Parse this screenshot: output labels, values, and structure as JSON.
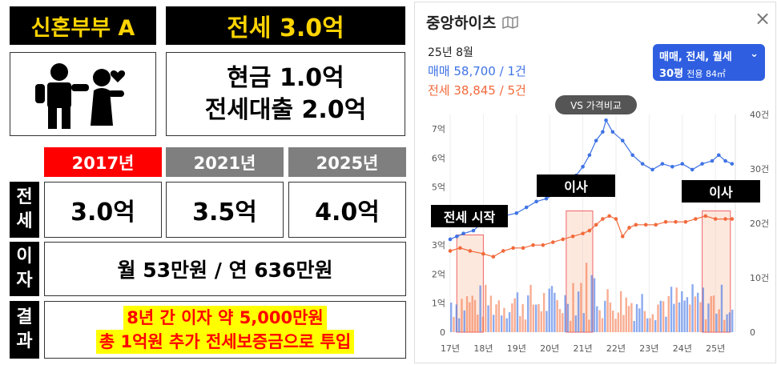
{
  "left": {
    "title": "신혼부부 A",
    "headline": "전세 3.0억",
    "cash_line1": "현금 1.0억",
    "cash_line2": "전세대출 2.0억",
    "years": [
      {
        "label": "2017년",
        "color": "#ff0000"
      },
      {
        "label": "2021년",
        "color": "#7f7f7f"
      },
      {
        "label": "2025년",
        "color": "#7f7f7f"
      }
    ],
    "jeonse_side": [
      "전",
      "세"
    ],
    "jeonse_values": [
      "3.0억",
      "3.5억",
      "4.0억"
    ],
    "interest_side": [
      "이",
      "자"
    ],
    "interest_value": "월 53만원 / 연 636만원",
    "result_side": [
      "결",
      "과"
    ],
    "result_line1": "8년 간 이자 약 5,000만원",
    "result_line2": "총 1억원 추가 전세보증금으로 투입"
  },
  "panel": {
    "title": "중앙하이츠",
    "date": "25년 8월",
    "sale_line": "매매 58,700 / 1건",
    "jeonse_line": "전세 38,845 / 5건",
    "filter_line1": "매매, 전세, 월세",
    "filter_size": "30평",
    "filter_area": "전용 84㎡",
    "compare_button": "VS 가격비교",
    "annotations": [
      "전세 시작",
      "이사",
      "이사"
    ],
    "colors": {
      "sale": "#3f73e5",
      "jeonse": "#f26a3b",
      "filter": "#2f5fe0"
    }
  },
  "chart_data": {
    "type": "line",
    "x_ticks": [
      "17년",
      "18년",
      "19년",
      "20년",
      "21년",
      "22년",
      "23년",
      "24년",
      "25년"
    ],
    "y_left_ticks": [
      "0",
      "1억",
      "2억",
      "3억",
      "4억",
      "5억",
      "6억",
      "7억"
    ],
    "y_right_ticks": [
      "0",
      "10건",
      "20건",
      "30건",
      "40건"
    ],
    "y_left_range": [
      0,
      7.5
    ],
    "y_right_range": [
      0,
      40
    ],
    "series": [
      {
        "name": "매매",
        "color": "#3f73e5",
        "points": [
          [
            2017.0,
            3.2
          ],
          [
            2017.2,
            3.3
          ],
          [
            2017.4,
            3.4
          ],
          [
            2017.7,
            3.5
          ],
          [
            2018.0,
            3.8
          ],
          [
            2018.3,
            3.9
          ],
          [
            2018.6,
            4.0
          ],
          [
            2019.0,
            4.1
          ],
          [
            2019.3,
            4.3
          ],
          [
            2019.6,
            4.5
          ],
          [
            2019.9,
            4.6
          ],
          [
            2020.2,
            4.8
          ],
          [
            2020.5,
            5.0
          ],
          [
            2020.8,
            5.4
          ],
          [
            2021.0,
            5.7
          ],
          [
            2021.2,
            6.1
          ],
          [
            2021.4,
            6.6
          ],
          [
            2021.6,
            6.9
          ],
          [
            2021.7,
            7.3
          ],
          [
            2021.9,
            6.9
          ],
          [
            2022.2,
            6.6
          ],
          [
            2022.5,
            6.1
          ],
          [
            2022.8,
            5.8
          ],
          [
            2023.1,
            5.6
          ],
          [
            2023.4,
            5.8
          ],
          [
            2023.7,
            5.7
          ],
          [
            2024.0,
            5.8
          ],
          [
            2024.3,
            5.6
          ],
          [
            2024.6,
            5.8
          ],
          [
            2024.9,
            5.9
          ],
          [
            2025.1,
            6.1
          ],
          [
            2025.3,
            5.9
          ],
          [
            2025.5,
            5.8
          ]
        ]
      },
      {
        "name": "전세",
        "color": "#f26a3b",
        "points": [
          [
            2017.0,
            2.8
          ],
          [
            2017.3,
            2.9
          ],
          [
            2017.6,
            2.8
          ],
          [
            2018.0,
            2.7
          ],
          [
            2018.3,
            2.6
          ],
          [
            2018.6,
            2.8
          ],
          [
            2018.9,
            2.9
          ],
          [
            2019.2,
            2.9
          ],
          [
            2019.5,
            3.0
          ],
          [
            2019.8,
            3.0
          ],
          [
            2020.1,
            3.1
          ],
          [
            2020.4,
            3.2
          ],
          [
            2020.7,
            3.3
          ],
          [
            2021.0,
            3.4
          ],
          [
            2021.2,
            3.5
          ],
          [
            2021.4,
            3.7
          ],
          [
            2021.6,
            3.9
          ],
          [
            2021.8,
            4.0
          ],
          [
            2022.0,
            3.9
          ],
          [
            2022.2,
            3.3
          ],
          [
            2022.4,
            3.6
          ],
          [
            2022.6,
            3.7
          ],
          [
            2022.9,
            3.7
          ],
          [
            2023.2,
            3.7
          ],
          [
            2023.5,
            3.8
          ],
          [
            2023.8,
            3.8
          ],
          [
            2024.1,
            3.8
          ],
          [
            2024.4,
            3.9
          ],
          [
            2024.7,
            4.0
          ],
          [
            2025.0,
            3.9
          ],
          [
            2025.3,
            3.9
          ],
          [
            2025.5,
            3.9
          ]
        ]
      }
    ],
    "highlight_ranges": [
      [
        2017.2,
        2018.0
      ],
      [
        2020.5,
        2021.3
      ],
      [
        2024.6,
        2025.45
      ]
    ]
  }
}
